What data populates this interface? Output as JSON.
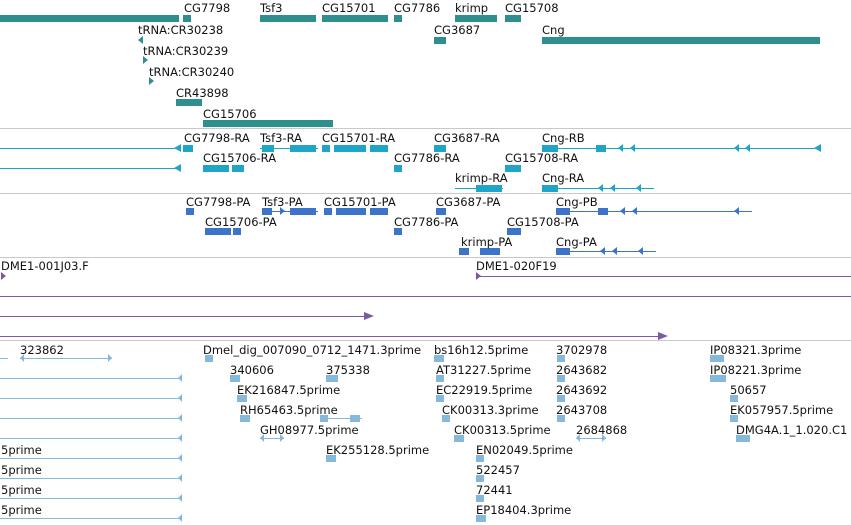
{
  "colors": {
    "gene": "#2f8f8e",
    "transcript_ra": "#1fa5c8",
    "transcript_pa": "#3b74c9",
    "clone": "#7a5aa6",
    "est": "#86b8dc",
    "separator": "#c8c8c8"
  },
  "tracks": {
    "genes": {
      "features": [
        {
          "label": "CG7798"
        },
        {
          "label": "Tsf3"
        },
        {
          "label": "CG15701"
        },
        {
          "label": "CG7786"
        },
        {
          "label": "krimp"
        },
        {
          "label": "CG15708"
        },
        {
          "label": "tRNA:CR30238"
        },
        {
          "label": "CG3687"
        },
        {
          "label": "Cng"
        },
        {
          "label": "tRNA:CR30239"
        },
        {
          "label": "tRNA:CR30240"
        },
        {
          "label": "CR43898"
        },
        {
          "label": "CG15706"
        }
      ]
    },
    "transcripts_ra": {
      "features": [
        {
          "label": "CG7798-RA"
        },
        {
          "label": "Tsf3-RA"
        },
        {
          "label": "CG15701-RA"
        },
        {
          "label": "CG3687-RA"
        },
        {
          "label": "Cng-RB"
        },
        {
          "label": "CG15706-RA"
        },
        {
          "label": "CG7786-RA"
        },
        {
          "label": "CG15708-RA"
        },
        {
          "label": "krimp-RA"
        },
        {
          "label": "Cng-RA"
        }
      ]
    },
    "transcripts_pa": {
      "features": [
        {
          "label": "CG7798-PA"
        },
        {
          "label": "Tsf3-PA"
        },
        {
          "label": "CG15701-PA"
        },
        {
          "label": "CG3687-PA"
        },
        {
          "label": "Cng-PB"
        },
        {
          "label": "CG15706-PA"
        },
        {
          "label": "CG7786-PA"
        },
        {
          "label": "CG15708-PA"
        },
        {
          "label": "krimp-PA"
        },
        {
          "label": "Cng-PA"
        }
      ]
    },
    "clones": {
      "features": [
        {
          "label": "DME1-001J03.F"
        },
        {
          "label": "DME1-020F19"
        }
      ]
    },
    "ests": {
      "features": [
        {
          "label": "323862"
        },
        {
          "label": "Dmel_dig_007090_0712_1471.3prime"
        },
        {
          "label": "bs16h12.5prime"
        },
        {
          "label": "3702978"
        },
        {
          "label": "IP08321.3prime"
        },
        {
          "label": "340606"
        },
        {
          "label": "375338"
        },
        {
          "label": "AT31227.5prime"
        },
        {
          "label": "2643682"
        },
        {
          "label": "IP08221.3prime"
        },
        {
          "label": "EK216847.5prime"
        },
        {
          "label": "EC22919.5prime"
        },
        {
          "label": "2643692"
        },
        {
          "label": "50657"
        },
        {
          "label": "RH65463.5prime"
        },
        {
          "label": "CK00313.3prime"
        },
        {
          "label": "2643708"
        },
        {
          "label": "EK057957.5prime"
        },
        {
          "label": "GH08977.5prime"
        },
        {
          "label": "CK00313.5prime"
        },
        {
          "label": "2684868"
        },
        {
          "label": "DMG4A.1_1.020.C1"
        },
        {
          "label": "5prime"
        },
        {
          "label": "EK255128.5prime"
        },
        {
          "label": "EN02049.5prime"
        },
        {
          "label": "5prime"
        },
        {
          "label": "522457"
        },
        {
          "label": "5prime"
        },
        {
          "label": "72441"
        },
        {
          "label": "5prime"
        },
        {
          "label": "EP18404.3prime"
        }
      ]
    }
  }
}
